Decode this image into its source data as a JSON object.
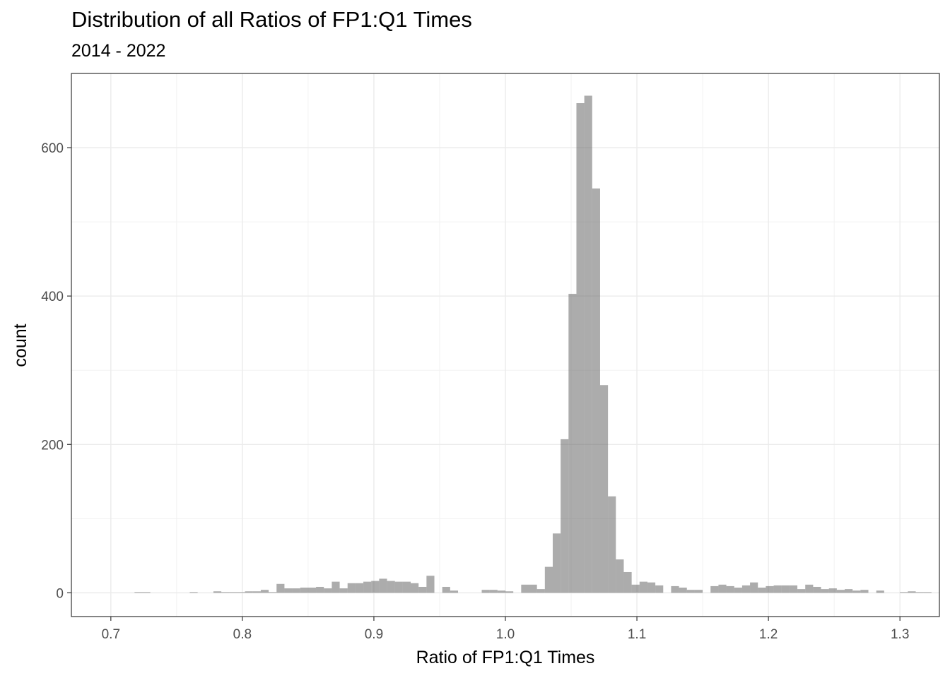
{
  "chart_data": {
    "type": "bar",
    "title": "Distribution of all Ratios of FP1:Q1 Times",
    "subtitle": "2014 - 2022",
    "xlabel": "Ratio of FP1:Q1 Times",
    "ylabel": "count",
    "xlim": [
      0.67,
      1.33
    ],
    "ylim": [
      -32,
      700
    ],
    "x_ticks": [
      0.7,
      0.8,
      0.9,
      1.0,
      1.1,
      1.2,
      1.3
    ],
    "x_tick_labels": [
      "0.7",
      "0.8",
      "0.9",
      "1.0",
      "1.1",
      "1.2",
      "1.3"
    ],
    "y_ticks": [
      0,
      200,
      400,
      600
    ],
    "y_tick_labels": [
      "0",
      "200",
      "400",
      "600"
    ],
    "bin_width": 0.006,
    "bin_start": 0.7,
    "values": [
      0,
      0,
      0,
      1,
      1,
      0,
      0,
      0,
      0,
      0,
      1,
      0,
      0,
      2,
      1,
      1,
      1,
      2,
      2,
      4,
      1,
      12,
      6,
      6,
      7,
      7,
      8,
      6,
      15,
      6,
      13,
      13,
      15,
      16,
      19,
      16,
      15,
      15,
      13,
      8,
      23,
      0,
      8,
      3,
      0,
      0,
      0,
      4,
      4,
      3,
      2,
      0,
      11,
      11,
      5,
      35,
      80,
      207,
      403,
      660,
      670,
      545,
      280,
      130,
      45,
      28,
      11,
      15,
      14,
      10,
      0,
      9,
      7,
      4,
      4,
      0,
      9,
      11,
      9,
      7,
      10,
      14,
      7,
      9,
      10,
      10,
      10,
      5,
      11,
      8,
      5,
      6,
      4,
      5,
      3,
      4,
      0,
      3,
      0,
      0,
      1,
      2,
      1,
      1,
      0,
      0
    ],
    "grid": true,
    "bar_color": "#595959"
  }
}
